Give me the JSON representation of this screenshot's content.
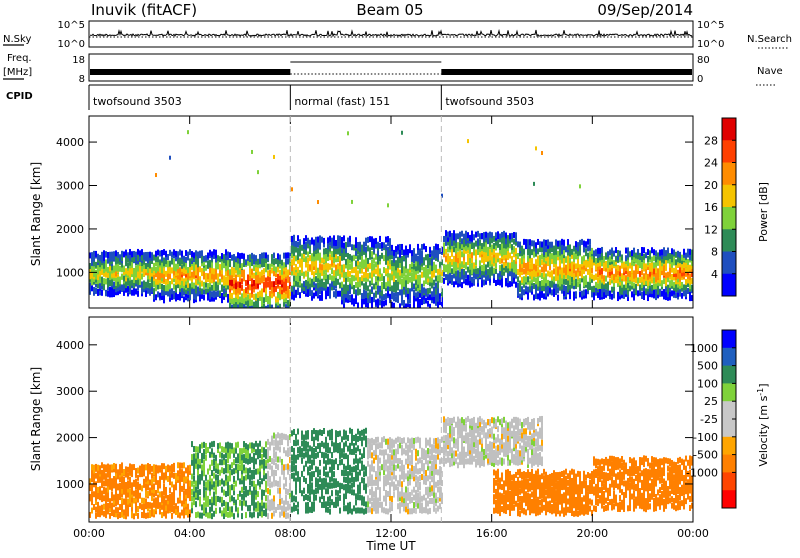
{
  "header": {
    "station": "Inuvik (fitACF)",
    "beam": "Beam 05",
    "date": "09/Sep/2014"
  },
  "aux_labels": {
    "nsky": "N.Sky",
    "freq_line1": "Freq.",
    "freq_line2": "[MHz]",
    "cpid": "CPID",
    "nsearch": "N.Search",
    "nave": "Nave"
  },
  "aux_ticks": {
    "nsky_top": "10^5",
    "nsky_bottom": "10^0",
    "nsearch_top": "10^5",
    "nsearch_bottom": "10^0",
    "freq_top": "18",
    "freq_bottom": "8",
    "nave_top": "80",
    "nave_bottom": "0"
  },
  "cpid_segments": [
    {
      "label": "twofsound 3503",
      "start_h": 0,
      "end_h": 8
    },
    {
      "label": "normal (fast) 151",
      "start_h": 8,
      "end_h": 14
    },
    {
      "label": "twofsound 3503",
      "start_h": 14,
      "end_h": 24
    }
  ],
  "colors": {
    "power_scale": [
      "#0000ff",
      "#1f4fbf",
      "#2e8b57",
      "#7fd23a",
      "#f5c400",
      "#ff8c00",
      "#ff4000",
      "#e00000"
    ],
    "velocity_scale": [
      "#ff0000",
      "#ff4500",
      "#ff8000",
      "#ffa500",
      "#c8c8c8",
      "#c8c8c8",
      "#7fd23a",
      "#2e8b57",
      "#1f5fbf",
      "#0000ff"
    ],
    "ground_scatter": "#c0c0c0"
  },
  "power_colorbar": {
    "label": "Power [dB]",
    "ticks": [
      "4",
      "8",
      "12",
      "16",
      "20",
      "24",
      "28"
    ]
  },
  "velocity_colorbar": {
    "label": "Velocity [m s^-1]",
    "ticks": [
      "1000",
      "500",
      "100",
      "25",
      "-25",
      "-100",
      "-500",
      "-1000"
    ]
  },
  "chart_data": [
    {
      "type": "heatmap",
      "panel": "power",
      "ylabel": "Slant Range [km]",
      "xlim_h": [
        0,
        24
      ],
      "ylim_km": [
        180,
        4600
      ],
      "yticks": [
        1000,
        2000,
        3000,
        4000
      ],
      "band_segments": [
        {
          "start_h": 0.0,
          "end_h": 2.5,
          "center_km": 950,
          "width_km": 500,
          "level": 20
        },
        {
          "start_h": 2.5,
          "end_h": 5.5,
          "center_km": 900,
          "width_km": 550,
          "level": 24
        },
        {
          "start_h": 5.5,
          "end_h": 8.0,
          "center_km": 700,
          "width_km": 700,
          "level": 30
        },
        {
          "start_h": 8.0,
          "end_h": 10.0,
          "center_km": 1100,
          "width_km": 700,
          "level": 22
        },
        {
          "start_h": 10.0,
          "end_h": 12.0,
          "center_km": 1000,
          "width_km": 800,
          "level": 20
        },
        {
          "start_h": 12.0,
          "end_h": 14.0,
          "center_km": 900,
          "width_km": 700,
          "level": 18
        },
        {
          "start_h": 14.0,
          "end_h": 17.0,
          "center_km": 1300,
          "width_km": 600,
          "level": 22
        },
        {
          "start_h": 17.0,
          "end_h": 20.0,
          "center_km": 1050,
          "width_km": 650,
          "level": 24
        },
        {
          "start_h": 20.0,
          "end_h": 24.0,
          "center_km": 950,
          "width_km": 550,
          "level": 26
        }
      ]
    },
    {
      "type": "heatmap",
      "panel": "velocity",
      "ylabel": "Slant Range [km]",
      "xlabel": "Time UT",
      "xlim_h": [
        0,
        24
      ],
      "xticks": [
        "00:00",
        "04:00",
        "08:00",
        "12:00",
        "16:00",
        "20:00",
        "00:00"
      ],
      "ylim_km": [
        180,
        4600
      ],
      "yticks": [
        1000,
        2000,
        3000,
        4000
      ],
      "band_segments": [
        {
          "start_h": 0.0,
          "end_h": 4.0,
          "center_km": 850,
          "width_km": 550,
          "velocity": -150
        },
        {
          "start_h": 4.0,
          "end_h": 7.0,
          "center_km": 1100,
          "width_km": 800,
          "velocity": 120
        },
        {
          "start_h": 7.0,
          "end_h": 8.0,
          "center_km": 1200,
          "width_km": 900,
          "velocity": 0
        },
        {
          "start_h": 8.0,
          "end_h": 11.0,
          "center_km": 1300,
          "width_km": 900,
          "velocity": 200
        },
        {
          "start_h": 11.0,
          "end_h": 14.0,
          "center_km": 1200,
          "width_km": 800,
          "velocity": 0
        },
        {
          "start_h": 14.0,
          "end_h": 18.0,
          "center_km": 1900,
          "width_km": 500,
          "velocity": 0
        },
        {
          "start_h": 16.0,
          "end_h": 20.0,
          "center_km": 800,
          "width_km": 450,
          "velocity": -200
        },
        {
          "start_h": 20.0,
          "end_h": 24.0,
          "center_km": 1000,
          "width_km": 550,
          "velocity": -200
        }
      ]
    }
  ]
}
